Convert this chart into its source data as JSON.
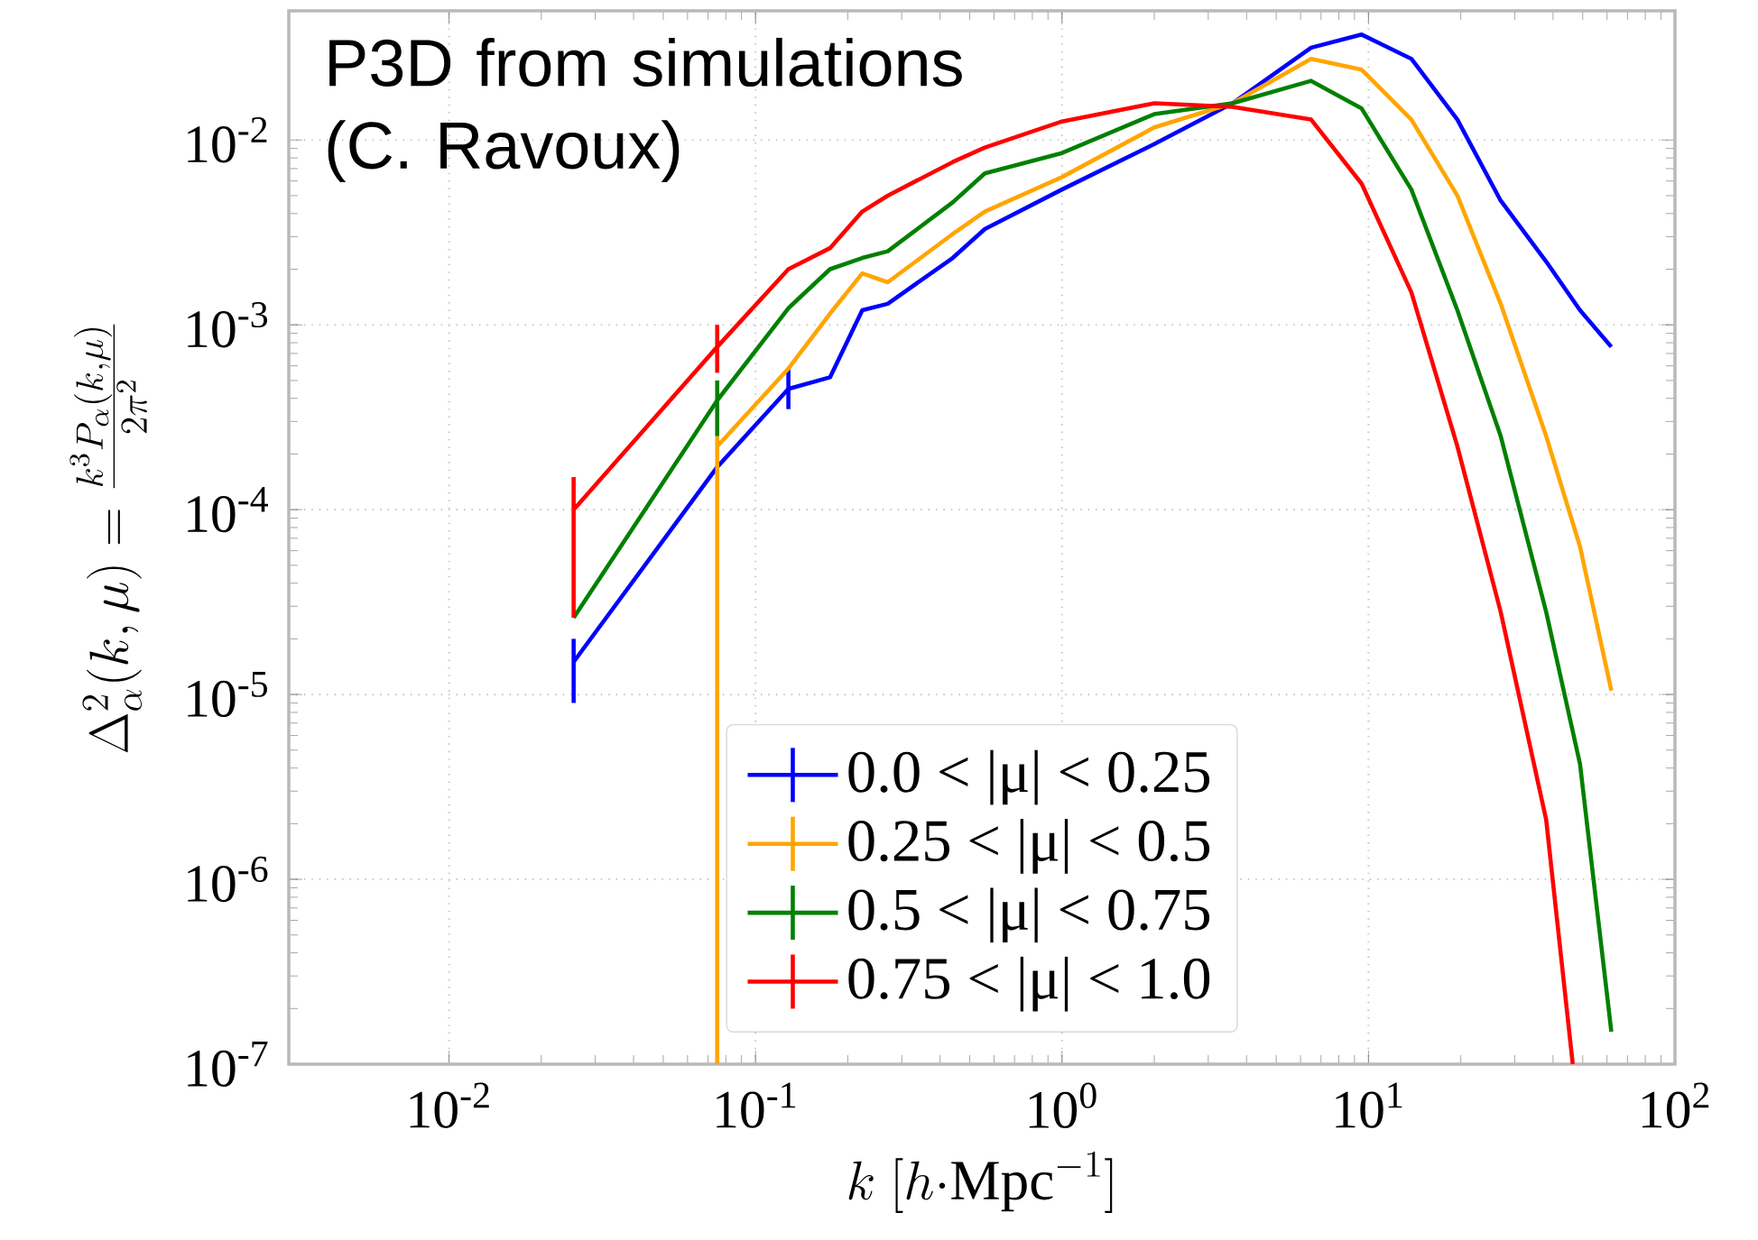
{
  "chart_data": {
    "type": "line",
    "xlabel": "k\\ [h{\\cdot}\\mathrm{Mpc}^{-1}]",
    "ylabel": "\\Delta^2_\\alpha(k,\\mu) = \\frac{k^3 P_\\alpha(k,\\mu)}{2\\pi^2}",
    "annotations": [
      "P3D from simulations (C. Ravoux)"
    ],
    "log": "xy",
    "grid": true,
    "legend": "bottom",
    "xlim": [
      0.003,
      100
    ],
    "ylim": [
      1e-07,
      0.05
    ],
    "xticks": [
      {
        "value": 0.01,
        "label": "10$^{-2}$"
      },
      {
        "value": 0.1,
        "label": "10$^{-1}$"
      },
      {
        "value": 1,
        "label": "10$^{0}$"
      },
      {
        "value": 10,
        "label": "10$^{1}$"
      },
      {
        "value": 100,
        "label": "10$^{2}$"
      }
    ],
    "yticks": [
      {
        "value": 1e-07,
        "label": "10$^{-7}$"
      },
      {
        "value": 1e-06,
        "label": "10$^{-6}$"
      },
      {
        "value": 1e-05,
        "label": "10$^{-5}$"
      },
      {
        "value": 0.0001,
        "label": "10$^{-4}$"
      },
      {
        "value": 0.001,
        "label": "10$^{-3}$"
      },
      {
        "value": 0.01,
        "label": "10$^{-2}$"
      }
    ],
    "x": [
      0.0255,
      0.075,
      0.128,
      0.175,
      0.223,
      0.27,
      0.44,
      0.56,
      1.0,
      2.0,
      3.6,
      6.5,
      9.5,
      13.8,
      19.5,
      27,
      38,
      49,
      62
    ],
    "series": [
      {
        "name": "0.0 < |μ| < 0.25",
        "color": "#0000ff",
        "values": [
          1.5e-05,
          0.00017,
          0.00045,
          0.00052,
          0.0012,
          0.0013,
          0.0023,
          0.0033,
          0.0054,
          0.0095,
          0.0158,
          0.0316,
          0.0372,
          0.0275,
          0.0129,
          0.0047,
          0.0022,
          0.0012,
          0.00076
        ],
        "errors": [
          [
            9e-06,
            2e-05
          ],
          null,
          [
            0.00035,
            0.00058
          ],
          null,
          null,
          null,
          null,
          null,
          null,
          null,
          null,
          null,
          null,
          null,
          null,
          null,
          null,
          null,
          null
        ]
      },
      {
        "name": "0.25 < |μ| < 0.5",
        "color": "#ffa500",
        "values": [
          null,
          0.00022,
          0.00058,
          0.00115,
          0.0019,
          0.0017,
          0.0031,
          0.0041,
          0.0063,
          0.0117,
          0.0158,
          0.0275,
          0.024,
          0.0129,
          0.005,
          0.0013,
          0.00025,
          6.3e-05,
          1.05e-05
        ],
        "errors": [
          null,
          [
            1e-07,
            0.00025
          ],
          null,
          null,
          null,
          null,
          null,
          null,
          null,
          null,
          null,
          null,
          null,
          null,
          null,
          null,
          null,
          null,
          null
        ]
      },
      {
        "name": "0.5 < |μ| < 0.75",
        "color": "#008000",
        "values": [
          2.6e-05,
          0.00039,
          0.00123,
          0.002,
          0.0023,
          0.0025,
          0.0046,
          0.0066,
          0.0085,
          0.0138,
          0.0158,
          0.0209,
          0.0148,
          0.0054,
          0.0012,
          0.00025,
          2.8e-05,
          4.2e-06,
          1.5e-07
        ],
        "errors": [
          null,
          [
            0.00025,
            0.0005
          ],
          null,
          null,
          null,
          null,
          null,
          null,
          null,
          null,
          null,
          null,
          null,
          null,
          null,
          null,
          null,
          null,
          null
        ]
      },
      {
        "name": "0.75 < |μ| < 1.0",
        "color": "#ff0000",
        "x": [
          0.0255,
          0.075,
          0.128,
          0.175,
          0.223,
          0.27,
          0.44,
          0.56,
          1.0,
          2.0,
          3.6,
          6.5,
          9.5,
          13.8,
          19.5,
          27,
          38,
          46.4
        ],
        "values": [
          0.0001,
          0.00076,
          0.002,
          0.0026,
          0.0041,
          0.005,
          0.0076,
          0.0091,
          0.0126,
          0.0158,
          0.0151,
          0.0129,
          0.0058,
          0.0015,
          0.00022,
          2.8e-05,
          2.1e-06,
          1e-07
        ],
        "errors": [
          [
            2.6e-05,
            0.00015
          ],
          [
            0.00055,
            0.001
          ],
          null,
          null,
          null,
          null,
          null,
          null,
          null,
          null,
          null,
          null,
          null,
          null,
          null,
          null,
          null,
          null
        ]
      }
    ]
  }
}
